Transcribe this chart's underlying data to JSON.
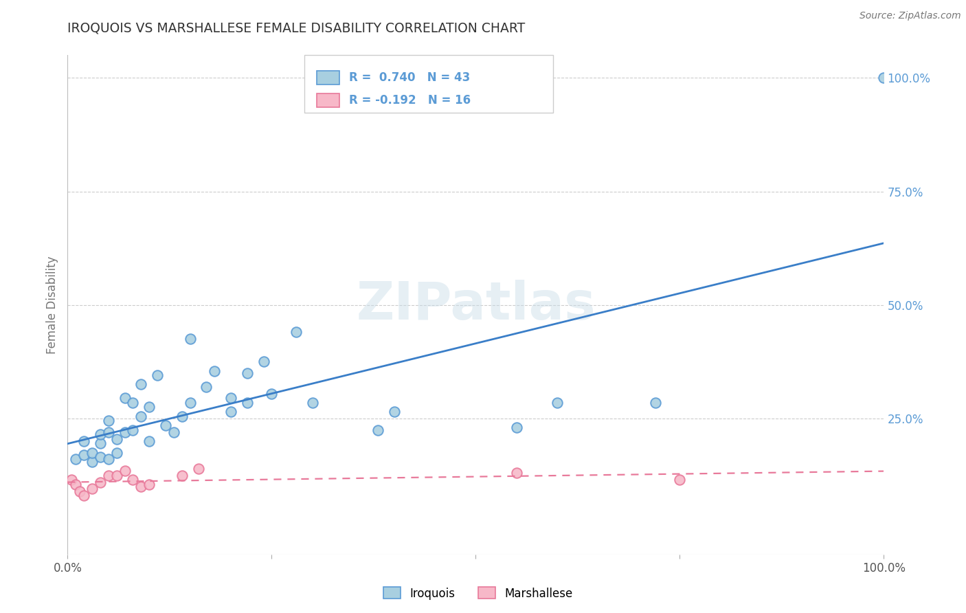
{
  "title": "IROQUOIS VS MARSHALLESE FEMALE DISABILITY CORRELATION CHART",
  "source": "Source: ZipAtlas.com",
  "ylabel": "Female Disability",
  "xlim": [
    0.0,
    1.0
  ],
  "ylim": [
    -0.05,
    1.05
  ],
  "ytick_labels_right": [
    "25.0%",
    "50.0%",
    "75.0%",
    "100.0%"
  ],
  "ytick_positions_right": [
    0.25,
    0.5,
    0.75,
    1.0
  ],
  "iroquois_color": "#a8cfe0",
  "iroquois_edge": "#5b9bd5",
  "marshallese_color": "#f7b8c8",
  "marshallese_edge": "#e8799a",
  "trend_blue": "#3a7ec8",
  "trend_pink": "#e8799a",
  "iroquois_R": 0.74,
  "iroquois_N": 43,
  "marshallese_R": -0.192,
  "marshallese_N": 16,
  "iroquois_x": [
    0.01,
    0.02,
    0.02,
    0.03,
    0.03,
    0.04,
    0.04,
    0.04,
    0.05,
    0.05,
    0.05,
    0.06,
    0.06,
    0.07,
    0.07,
    0.08,
    0.08,
    0.09,
    0.09,
    0.1,
    0.1,
    0.11,
    0.12,
    0.13,
    0.14,
    0.15,
    0.15,
    0.17,
    0.18,
    0.2,
    0.2,
    0.22,
    0.22,
    0.24,
    0.25,
    0.28,
    0.3,
    0.38,
    0.4,
    0.55,
    0.6,
    0.72,
    1.0
  ],
  "iroquois_y": [
    0.16,
    0.17,
    0.2,
    0.155,
    0.175,
    0.165,
    0.195,
    0.215,
    0.16,
    0.22,
    0.245,
    0.175,
    0.205,
    0.22,
    0.295,
    0.225,
    0.285,
    0.255,
    0.325,
    0.2,
    0.275,
    0.345,
    0.235,
    0.22,
    0.255,
    0.285,
    0.425,
    0.32,
    0.355,
    0.295,
    0.265,
    0.35,
    0.285,
    0.375,
    0.305,
    0.44,
    0.285,
    0.225,
    0.265,
    0.23,
    0.285,
    0.285,
    1.0
  ],
  "marshallese_x": [
    0.005,
    0.01,
    0.015,
    0.02,
    0.03,
    0.04,
    0.05,
    0.06,
    0.07,
    0.08,
    0.09,
    0.1,
    0.14,
    0.16,
    0.55,
    0.75
  ],
  "marshallese_y": [
    0.115,
    0.105,
    0.09,
    0.08,
    0.095,
    0.11,
    0.125,
    0.125,
    0.135,
    0.115,
    0.1,
    0.105,
    0.125,
    0.14,
    0.13,
    0.115
  ],
  "watermark": "ZIPatlas",
  "background_color": "#ffffff",
  "grid_color": "#cccccc",
  "title_color": "#333333",
  "axis_label_color": "#777777",
  "right_tick_color": "#5b9bd5",
  "legend_color": "#5b9bd5"
}
